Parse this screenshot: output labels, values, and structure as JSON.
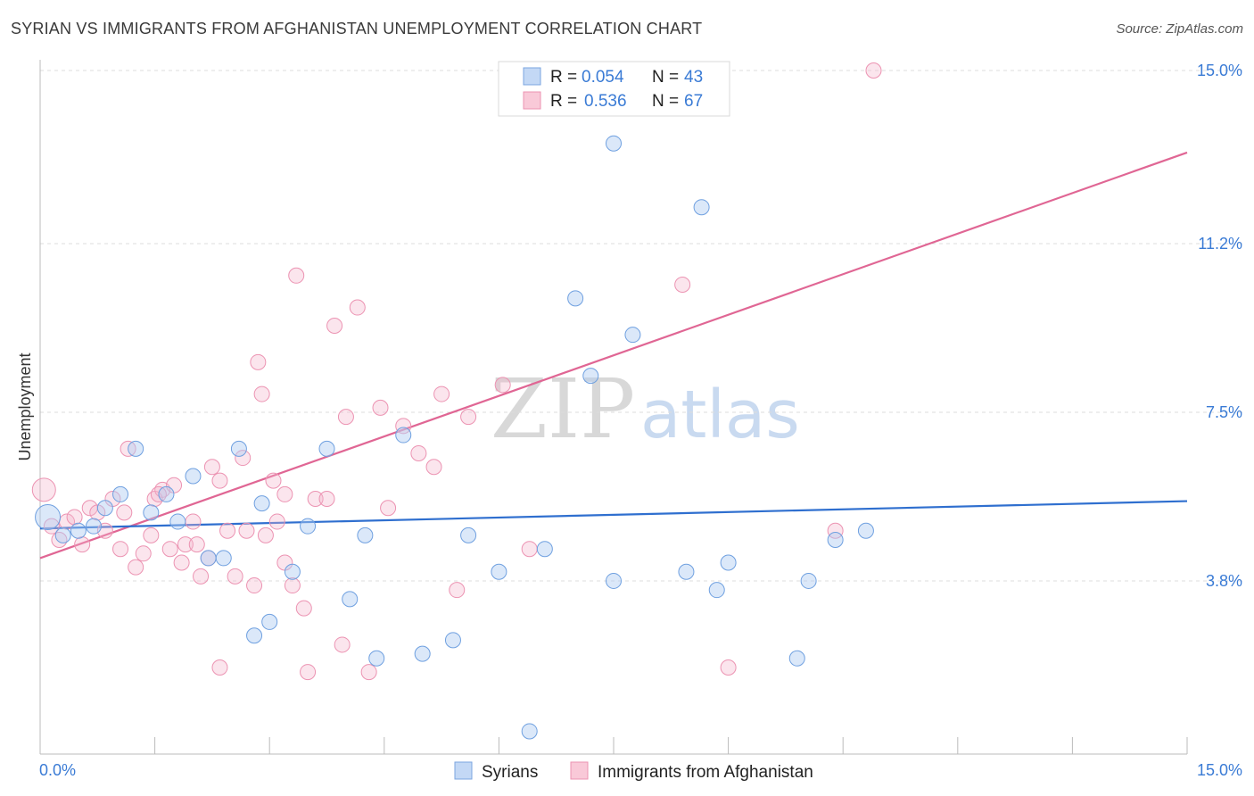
{
  "header": {
    "title": "SYRIAN VS IMMIGRANTS FROM AFGHANISTAN UNEMPLOYMENT CORRELATION CHART",
    "source": "Source: ZipAtlas.com"
  },
  "watermark": {
    "zip": "ZIP",
    "atlas": "atlas"
  },
  "legend": {
    "series": [
      {
        "r_label": "R =",
        "r_value": "0.054",
        "n_label": "N =",
        "n_value": "43"
      },
      {
        "r_label": "R =",
        "r_value": "0.536",
        "n_label": "N =",
        "n_value": "67"
      }
    ]
  },
  "bottom_legend": {
    "syrians": "Syrians",
    "afghanistan": "Immigrants from Afghanistan"
  },
  "chart_data": {
    "type": "scatter",
    "title": "SYRIAN VS IMMIGRANTS FROM AFGHANISTAN UNEMPLOYMENT CORRELATION CHART",
    "xlabel": "",
    "ylabel": "Unemployment",
    "xlim": [
      0,
      15
    ],
    "ylim": [
      0,
      15.5
    ],
    "x_tick_labels": [
      "0.0%",
      "15.0%"
    ],
    "y_ticks": [
      3.8,
      7.5,
      11.2,
      15.0
    ],
    "y_tick_labels": [
      "3.8%",
      "7.5%",
      "11.2%",
      "15.0%"
    ],
    "colors": {
      "syrians": "#6fa0e0",
      "afghanistan": "#ec93b2",
      "syrians_line": "#2f6fcf",
      "afghanistan_line": "#e06694"
    },
    "series": [
      {
        "name": "Syrians",
        "r": 0.054,
        "n": 43,
        "trend": {
          "x": [
            0,
            15
          ],
          "y": [
            4.95,
            5.55
          ]
        },
        "points": [
          [
            0.1,
            5.2
          ],
          [
            0.3,
            4.8
          ],
          [
            0.5,
            4.9
          ],
          [
            0.7,
            5.0
          ],
          [
            0.85,
            5.4
          ],
          [
            1.05,
            5.7
          ],
          [
            1.25,
            6.7
          ],
          [
            1.45,
            5.3
          ],
          [
            1.65,
            5.7
          ],
          [
            1.8,
            5.1
          ],
          [
            2.0,
            6.1
          ],
          [
            2.2,
            4.3
          ],
          [
            2.4,
            4.3
          ],
          [
            2.6,
            6.7
          ],
          [
            2.8,
            2.6
          ],
          [
            2.9,
            5.5
          ],
          [
            3.0,
            2.9
          ],
          [
            3.3,
            4.0
          ],
          [
            3.5,
            5.0
          ],
          [
            3.75,
            6.7
          ],
          [
            4.05,
            3.4
          ],
          [
            4.25,
            4.8
          ],
          [
            4.4,
            2.1
          ],
          [
            4.75,
            7.0
          ],
          [
            5.0,
            2.2
          ],
          [
            5.4,
            2.5
          ],
          [
            5.6,
            4.8
          ],
          [
            6.0,
            4.0
          ],
          [
            6.4,
            0.5
          ],
          [
            6.6,
            4.5
          ],
          [
            7.0,
            10.0
          ],
          [
            7.2,
            8.3
          ],
          [
            7.5,
            3.8
          ],
          [
            7.5,
            13.4
          ],
          [
            7.75,
            9.2
          ],
          [
            8.45,
            4.0
          ],
          [
            8.65,
            12.0
          ],
          [
            8.85,
            3.6
          ],
          [
            9.0,
            4.2
          ],
          [
            9.9,
            2.1
          ],
          [
            10.05,
            3.8
          ],
          [
            10.4,
            4.7
          ],
          [
            10.8,
            4.9
          ]
        ]
      },
      {
        "name": "Immigrants from Afghanistan",
        "r": 0.536,
        "n": 67,
        "trend": {
          "x": [
            0,
            15
          ],
          "y": [
            4.3,
            13.2
          ]
        },
        "points": [
          [
            0.05,
            5.8
          ],
          [
            0.15,
            5.0
          ],
          [
            0.25,
            4.7
          ],
          [
            0.35,
            5.1
          ],
          [
            0.45,
            5.2
          ],
          [
            0.55,
            4.6
          ],
          [
            0.65,
            5.4
          ],
          [
            0.75,
            5.3
          ],
          [
            0.85,
            4.9
          ],
          [
            0.95,
            5.6
          ],
          [
            1.05,
            4.5
          ],
          [
            1.1,
            5.3
          ],
          [
            1.15,
            6.7
          ],
          [
            1.25,
            4.1
          ],
          [
            1.35,
            4.4
          ],
          [
            1.45,
            4.8
          ],
          [
            1.5,
            5.6
          ],
          [
            1.6,
            5.8
          ],
          [
            1.7,
            4.5
          ],
          [
            1.75,
            5.9
          ],
          [
            1.85,
            4.2
          ],
          [
            1.9,
            4.6
          ],
          [
            2.0,
            5.1
          ],
          [
            2.05,
            4.6
          ],
          [
            2.1,
            3.9
          ],
          [
            2.2,
            4.3
          ],
          [
            2.25,
            6.3
          ],
          [
            2.35,
            6.0
          ],
          [
            2.45,
            4.9
          ],
          [
            2.55,
            3.9
          ],
          [
            2.65,
            6.5
          ],
          [
            2.7,
            4.9
          ],
          [
            2.8,
            3.7
          ],
          [
            2.85,
            8.6
          ],
          [
            2.9,
            7.9
          ],
          [
            2.95,
            4.8
          ],
          [
            3.05,
            6.0
          ],
          [
            3.1,
            5.1
          ],
          [
            3.2,
            4.2
          ],
          [
            3.3,
            3.7
          ],
          [
            3.35,
            10.5
          ],
          [
            3.45,
            3.2
          ],
          [
            3.5,
            1.8
          ],
          [
            3.6,
            5.6
          ],
          [
            3.75,
            5.6
          ],
          [
            3.85,
            9.4
          ],
          [
            3.95,
            2.4
          ],
          [
            4.0,
            7.4
          ],
          [
            4.15,
            9.8
          ],
          [
            4.3,
            1.8
          ],
          [
            4.45,
            7.6
          ],
          [
            4.55,
            5.4
          ],
          [
            4.75,
            7.2
          ],
          [
            4.95,
            6.6
          ],
          [
            5.15,
            6.3
          ],
          [
            5.25,
            7.9
          ],
          [
            5.45,
            3.6
          ],
          [
            5.6,
            7.4
          ],
          [
            6.05,
            8.1
          ],
          [
            6.4,
            4.5
          ],
          [
            8.4,
            10.3
          ],
          [
            9.0,
            1.9
          ],
          [
            10.4,
            4.9
          ],
          [
            10.9,
            15.0
          ],
          [
            2.35,
            1.9
          ],
          [
            3.2,
            5.7
          ],
          [
            1.55,
            5.7
          ]
        ]
      }
    ]
  }
}
